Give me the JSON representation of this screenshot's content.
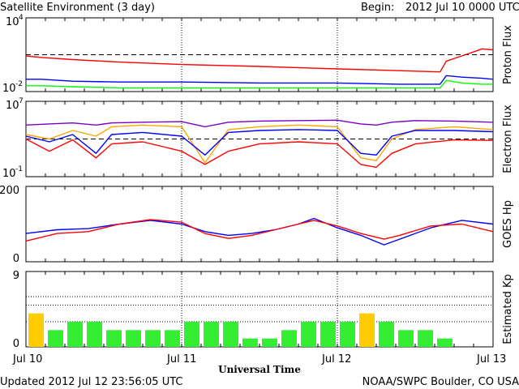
{
  "header": {
    "title": "Satellite Environment (3 day)",
    "begin_label": "Begin:",
    "begin_value": "2012 Jul 10 0000 UTC"
  },
  "footer": {
    "updated": "Updated 2012 Jul 12 23:56:05 UTC",
    "credit": "NOAA/SWPC Boulder, CO USA"
  },
  "xaxis": {
    "label": "Universal Time",
    "ticks": [
      "Jul 10",
      "Jul 11",
      "Jul 12",
      "Jul 13"
    ]
  },
  "colors": {
    "red": "#ff0000",
    "blue": "#0000ff",
    "green": "#00ff00",
    "orange": "#ffa500",
    "purple": "#7a00c8",
    "kp_green": "#33ee33",
    "kp_yellow": "#ffcc00"
  },
  "chart_data": [
    {
      "type": "line",
      "ylabel": "Proton Flux",
      "yscale": "log",
      "ytick_labels": {
        "top": "10",
        "top_exp": "4",
        "bottom": "10",
        "bottom_exp": "-2"
      },
      "ylim": [
        0.01,
        10000
      ],
      "threshold": 10,
      "x_days": [
        0,
        0.1,
        0.3,
        0.6,
        1.0,
        1.5,
        2.0,
        2.4,
        2.66,
        2.7,
        2.8,
        2.93,
        3.0
      ],
      "series": [
        {
          "color": "red",
          "values": [
            8,
            6,
            4,
            2.5,
            1.6,
            1.1,
            0.7,
            0.5,
            0.4,
            3,
            8,
            30,
            25
          ]
        },
        {
          "color": "blue",
          "values": [
            0.1,
            0.1,
            0.07,
            0.06,
            0.06,
            0.05,
            0.05,
            0.04,
            0.04,
            0.2,
            0.15,
            0.12,
            0.1
          ]
        },
        {
          "color": "green",
          "values": [
            0.03,
            0.03,
            0.025,
            0.02,
            0.02,
            0.02,
            0.02,
            0.02,
            0.02,
            0.08,
            0.05,
            0.04,
            0.04
          ]
        }
      ]
    },
    {
      "type": "line",
      "ylabel": "Electron Flux",
      "yscale": "log",
      "ytick_labels": {
        "top": "10",
        "top_exp": "7",
        "bottom": "10",
        "bottom_exp": "-1"
      },
      "ylim": [
        0.1,
        10000000
      ],
      "threshold": 1000,
      "x_days": [
        0,
        0.15,
        0.3,
        0.45,
        0.55,
        0.75,
        1.0,
        1.15,
        1.3,
        1.5,
        1.75,
        2.0,
        2.15,
        2.25,
        2.35,
        2.5,
        2.75,
        3.0
      ],
      "series": [
        {
          "color": "purple",
          "values": [
            30000,
            40000,
            50000,
            30000,
            50000,
            60000,
            70000,
            20000,
            60000,
            80000,
            90000,
            100000,
            40000,
            30000,
            60000,
            90000,
            80000,
            60000
          ]
        },
        {
          "color": "orange",
          "values": [
            3000,
            1000,
            8000,
            2000,
            20000,
            30000,
            20000,
            3,
            10000,
            20000,
            30000,
            20000,
            10,
            5,
            1000,
            10000,
            20000,
            10000
          ]
        },
        {
          "color": "blue",
          "values": [
            2000,
            500,
            3000,
            30,
            3000,
            5000,
            2000,
            20,
            5000,
            8000,
            10000,
            8000,
            30,
            20,
            2000,
            8000,
            8000,
            6000
          ]
        },
        {
          "color": "red",
          "values": [
            1000,
            50,
            800,
            10,
            300,
            500,
            50,
            2,
            50,
            300,
            500,
            300,
            2,
            1,
            30,
            300,
            800,
            700
          ]
        }
      ]
    },
    {
      "type": "line",
      "ylabel": "GOES Hp",
      "yscale": "linear",
      "ytick_labels": {
        "top": "200",
        "bottom": "0"
      },
      "ylim": [
        0,
        200
      ],
      "x_days": [
        0,
        0.2,
        0.4,
        0.6,
        0.8,
        1.0,
        1.15,
        1.3,
        1.45,
        1.6,
        1.75,
        1.85,
        2.0,
        2.15,
        2.3,
        2.4,
        2.6,
        2.8,
        3.0
      ],
      "series": [
        {
          "color": "blue",
          "values": [
            75,
            85,
            88,
            100,
            110,
            100,
            80,
            70,
            75,
            85,
            100,
            115,
            90,
            70,
            45,
            60,
            90,
            110,
            100
          ]
        },
        {
          "color": "red",
          "values": [
            55,
            75,
            80,
            100,
            112,
            105,
            75,
            62,
            70,
            85,
            100,
            110,
            95,
            75,
            60,
            70,
            95,
            100,
            80
          ]
        }
      ]
    },
    {
      "type": "bar",
      "ylabel": "Estimated Kp",
      "ytick_labels": {
        "top": "9",
        "bottom": "0"
      },
      "ylim": [
        0,
        9
      ],
      "storm_threshold": 5,
      "values": [
        4,
        2,
        3,
        3,
        2,
        2,
        2,
        2,
        3,
        3,
        3,
        1,
        1,
        2,
        3,
        3,
        3,
        4,
        3,
        2,
        2,
        1,
        0,
        0
      ],
      "highlight": [
        0,
        17
      ]
    }
  ]
}
